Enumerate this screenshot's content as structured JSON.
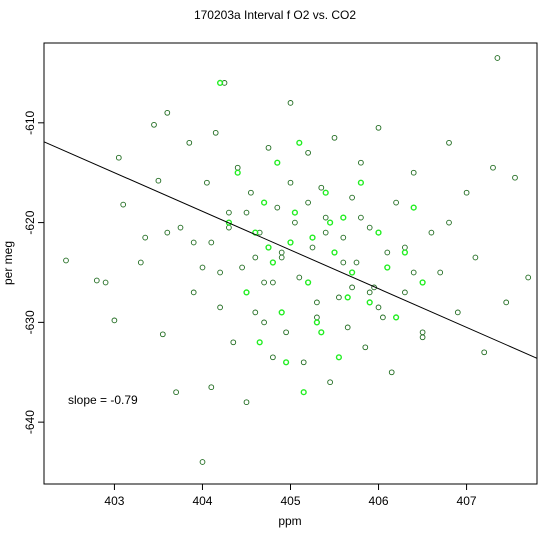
{
  "chart_data": {
    "type": "scatter",
    "title": "170203a   Interval f O2 vs. CO2",
    "xlabel": "ppm",
    "ylabel": "per meg",
    "xlim": [
      402.2,
      407.8
    ],
    "ylim": [
      -646.2,
      -602.0
    ],
    "xticks": [
      403,
      404,
      405,
      406,
      407
    ],
    "yticks": [
      -610,
      -620,
      -630,
      -640
    ],
    "xtick_labels": [
      "403",
      "404",
      "405",
      "406",
      "407"
    ],
    "ytick_labels": [
      "-610",
      "-620",
      "-630",
      "-640"
    ],
    "annotation": "slope =  -0.79",
    "fit_line": {
      "slope": -0.79,
      "x": [
        402.2,
        407.8
      ],
      "y": [
        -611.9,
        -633.6
      ]
    },
    "grid": false,
    "legend": "none",
    "colors": {
      "series_dark": "#1f6b1f",
      "series_bright": "#22ee22",
      "fit_line": "#000000"
    },
    "series": [
      {
        "color": "#1f6b1f",
        "points_description": "dense cloud of dark-green open circles centered near (405.1, -623)",
        "x": [
          402.45,
          402.8,
          402.9,
          403.0,
          403.05,
          403.1,
          403.3,
          403.35,
          403.45,
          403.5,
          403.55,
          403.6,
          403.7,
          403.75,
          403.85,
          403.9,
          404.0,
          404.05,
          404.1,
          404.1,
          404.15,
          404.2,
          404.25,
          404.3,
          404.35,
          404.4,
          404.45,
          404.5,
          404.55,
          404.6,
          404.65,
          404.7,
          404.75,
          404.8,
          404.85,
          404.9,
          404.95,
          405.0,
          405.05,
          405.1,
          405.15,
          405.2,
          405.25,
          405.3,
          405.35,
          405.4,
          405.45,
          405.5,
          405.55,
          405.6,
          405.65,
          405.7,
          405.75,
          405.8,
          405.85,
          405.9,
          405.95,
          406.0,
          406.05,
          406.1,
          406.15,
          406.2,
          406.3,
          406.4,
          406.5,
          406.6,
          406.7,
          406.8,
          406.9,
          407.0,
          407.1,
          407.2,
          407.3,
          407.35,
          407.45,
          407.55,
          407.7,
          404.9,
          405.4,
          405.9,
          404.5,
          403.9,
          406.4,
          405.2,
          404.8,
          405.6,
          404.3,
          406.0,
          405.0,
          404.7,
          405.8,
          404.2,
          406.3,
          403.6,
          406.8,
          405.3,
          404.6,
          405.7,
          404.0,
          406.5
        ],
        "y": [
          -623.8,
          -625.8,
          -626.0,
          -629.8,
          -613.5,
          -618.2,
          -624.0,
          -621.5,
          -610.2,
          -615.8,
          -631.2,
          -609.0,
          -637.0,
          -620.5,
          -612.0,
          -627.0,
          -644.0,
          -616.0,
          -622.0,
          -636.5,
          -611.0,
          -628.5,
          -606.0,
          -619.0,
          -632.0,
          -614.5,
          -624.5,
          -638.0,
          -617.0,
          -629.0,
          -621.0,
          -626.0,
          -612.5,
          -633.5,
          -618.5,
          -623.5,
          -631.0,
          -608.0,
          -620.0,
          -625.5,
          -634.0,
          -613.0,
          -622.5,
          -628.0,
          -616.5,
          -619.5,
          -636.0,
          -611.5,
          -627.5,
          -621.5,
          -630.5,
          -617.5,
          -624.0,
          -614.0,
          -632.5,
          -620.5,
          -626.5,
          -610.5,
          -629.5,
          -623.0,
          -635.0,
          -618.0,
          -627.0,
          -615.0,
          -631.5,
          -621.0,
          -625.0,
          -612.0,
          -629.0,
          -617.0,
          -623.5,
          -633.0,
          -614.5,
          -603.5,
          -628.0,
          -615.5,
          -625.5,
          -623.0,
          -621.0,
          -627.0,
          -619.0,
          -622.0,
          -625.0,
          -618.0,
          -626.0,
          -624.0,
          -620.5,
          -628.5,
          -616.0,
          -630.0,
          -619.5,
          -625.0,
          -622.5,
          -621.0,
          -620.0,
          -629.5,
          -623.5,
          -626.5,
          -624.5,
          -631.0
        ]
      },
      {
        "color": "#22ee22",
        "points_description": "bright-green open circles interleaved with the dark series, same center",
        "x": [
          404.2,
          404.3,
          404.4,
          404.5,
          404.6,
          404.65,
          404.7,
          404.8,
          404.85,
          404.9,
          405.0,
          405.05,
          405.1,
          405.2,
          405.25,
          405.3,
          405.4,
          405.5,
          405.55,
          405.6,
          405.7,
          405.8,
          405.9,
          406.0,
          406.1,
          406.2,
          406.3,
          406.4,
          406.5,
          405.15,
          404.95,
          405.35,
          404.75,
          405.65,
          405.45
        ],
        "y": [
          -606.0,
          -620.0,
          -615.0,
          -627.0,
          -621.0,
          -632.0,
          -618.0,
          -624.0,
          -614.0,
          -629.0,
          -622.0,
          -619.0,
          -612.0,
          -626.0,
          -621.5,
          -630.0,
          -617.0,
          -623.0,
          -633.5,
          -619.5,
          -625.0,
          -616.0,
          -628.0,
          -621.0,
          -624.5,
          -629.5,
          -623.0,
          -618.5,
          -626.0,
          -637.0,
          -634.0,
          -631.0,
          -622.5,
          -627.5,
          -620.0
        ]
      }
    ]
  }
}
